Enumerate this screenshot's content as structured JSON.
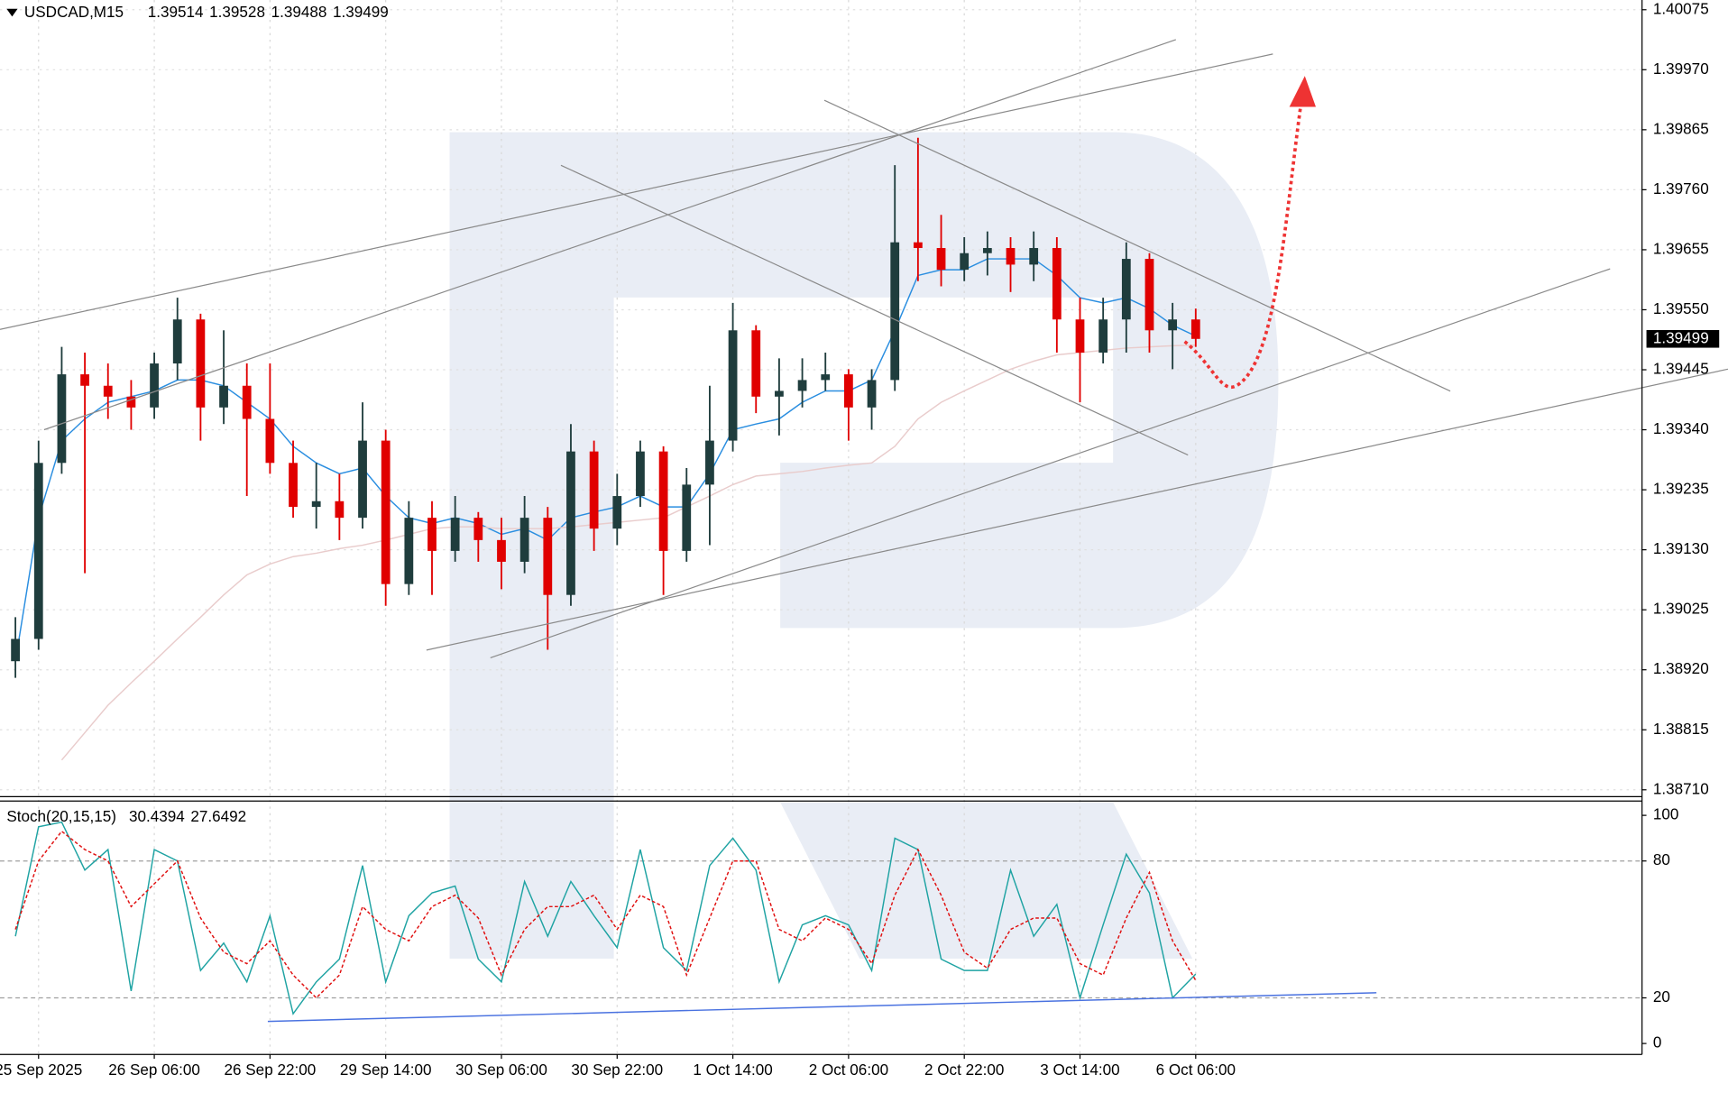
{
  "chart_data": [
    {
      "type": "candlestick",
      "title": "USDCAD,M15",
      "last_ohlc": {
        "open": 1.39514,
        "high": 1.39528,
        "low": 1.39488,
        "close": 1.39499
      },
      "price_label": 1.39499,
      "categories": [
        null,
        "25 Sep 2025",
        null,
        null,
        null,
        null,
        "26 Sep 06:00",
        null,
        null,
        null,
        null,
        "26 Sep 22:00",
        null,
        null,
        null,
        null,
        "29 Sep 14:00",
        null,
        null,
        null,
        null,
        "30 Sep 06:00",
        null,
        null,
        null,
        null,
        "30 Sep 22:00",
        null,
        null,
        null,
        null,
        "1 Oct 14:00",
        null,
        null,
        null,
        null,
        "2 Oct 06:00",
        null,
        null,
        null,
        null,
        "2 Oct 22:00",
        null,
        null,
        null,
        null,
        "3 Oct 14:00",
        null,
        null,
        null,
        null,
        "6 Oct 06:00"
      ],
      "open": [
        1.38935,
        1.38974,
        1.39282,
        1.39437,
        1.39417,
        1.39398,
        1.39379,
        1.39456,
        1.39533,
        1.39379,
        1.39417,
        1.39359,
        1.39282,
        1.39205,
        1.39215,
        1.39186,
        1.39321,
        1.3907,
        1.39186,
        1.39128,
        1.39186,
        1.39147,
        1.39109,
        1.39186,
        1.39051,
        1.39302,
        1.39167,
        1.39224,
        1.39302,
        1.39128,
        1.39244,
        1.39321,
        1.39514,
        1.39398,
        1.39408,
        1.39427,
        1.39437,
        1.39379,
        1.39427,
        1.39668,
        1.39658,
        1.3962,
        1.39649,
        1.39658,
        1.39629,
        1.39658,
        1.39533,
        1.39475,
        1.39533,
        1.39639,
        1.39514,
        1.39533
      ],
      "high": [
        1.39012,
        1.39321,
        1.39485,
        1.39475,
        1.39456,
        1.39427,
        1.39475,
        1.39571,
        1.39543,
        1.39514,
        1.39456,
        1.39456,
        1.39321,
        1.39282,
        1.39263,
        1.39388,
        1.3934,
        1.39215,
        1.39215,
        1.39224,
        1.39196,
        1.39186,
        1.39224,
        1.39205,
        1.3935,
        1.39321,
        1.39263,
        1.39321,
        1.39311,
        1.39273,
        1.39417,
        1.39562,
        1.39523,
        1.39465,
        1.39465,
        1.39475,
        1.39446,
        1.39446,
        1.39803,
        1.39851,
        1.39716,
        1.39677,
        1.39687,
        1.39677,
        1.39687,
        1.39677,
        1.39571,
        1.39571,
        1.39668,
        1.39649,
        1.39562,
        1.39552
      ],
      "low": [
        1.38906,
        1.38955,
        1.39263,
        1.39089,
        1.39359,
        1.3934,
        1.39359,
        1.39427,
        1.39321,
        1.3935,
        1.39224,
        1.39263,
        1.39186,
        1.39167,
        1.39147,
        1.39167,
        1.39032,
        1.39051,
        1.39051,
        1.39109,
        1.39109,
        1.39061,
        1.39089,
        1.38955,
        1.39032,
        1.39128,
        1.39138,
        1.39205,
        1.39051,
        1.39109,
        1.39138,
        1.39302,
        1.39369,
        1.3933,
        1.39379,
        1.39408,
        1.39321,
        1.3934,
        1.39408,
        1.396,
        1.39591,
        1.396,
        1.3961,
        1.39581,
        1.396,
        1.39475,
        1.39388,
        1.39456,
        1.39475,
        1.39475,
        1.39446,
        1.39485
      ],
      "close": [
        1.38974,
        1.39282,
        1.39437,
        1.39417,
        1.39398,
        1.39379,
        1.39456,
        1.39533,
        1.39379,
        1.39417,
        1.39359,
        1.39282,
        1.39205,
        1.39215,
        1.39186,
        1.39321,
        1.3907,
        1.39186,
        1.39128,
        1.39186,
        1.39147,
        1.39109,
        1.39186,
        1.39051,
        1.39302,
        1.39167,
        1.39224,
        1.39302,
        1.39128,
        1.39244,
        1.39321,
        1.39514,
        1.39398,
        1.39408,
        1.39427,
        1.39437,
        1.39379,
        1.39427,
        1.39668,
        1.39658,
        1.3962,
        1.39649,
        1.39658,
        1.39629,
        1.39658,
        1.39533,
        1.39475,
        1.39533,
        1.39639,
        1.39514,
        1.39533,
        1.39499
      ],
      "up_color": "#1f3d3d",
      "down_color": "#e00000",
      "series": [
        {
          "color": "#2a8ee0",
          "values": [
            1.38935,
            1.39186,
            1.39321,
            1.39359,
            1.39388,
            1.39398,
            1.39408,
            1.39427,
            1.39427,
            1.39417,
            1.39388,
            1.39359,
            1.39311,
            1.39282,
            1.39263,
            1.39273,
            1.39224,
            1.39186,
            1.39176,
            1.39186,
            1.39176,
            1.39157,
            1.39167,
            1.39147,
            1.39186,
            1.39196,
            1.39205,
            1.39224,
            1.39205,
            1.39205,
            1.39263,
            1.3934,
            1.3935,
            1.39359,
            1.39388,
            1.39408,
            1.39408,
            1.39427,
            1.39514,
            1.3961,
            1.3962,
            1.3962,
            1.39639,
            1.39639,
            1.39639,
            1.3961,
            1.39571,
            1.39562,
            1.39571,
            1.39552,
            1.39523,
            1.39504
          ]
        },
        {
          "color": "#e9cccc",
          "values": [
            null,
            null,
            1.38762,
            1.3881,
            1.38858,
            1.38897,
            1.38935,
            1.38974,
            1.39012,
            1.39051,
            1.39086,
            1.39105,
            1.39118,
            1.39124,
            1.39132,
            1.39138,
            1.39147,
            1.39157,
            1.39167,
            1.3917,
            1.3917,
            1.39167,
            1.39167,
            1.39167,
            1.3917,
            1.39174,
            1.39178,
            1.39182,
            1.39186,
            1.39205,
            1.39224,
            1.39244,
            1.39259,
            1.39263,
            1.39267,
            1.39273,
            1.39278,
            1.39282,
            1.39311,
            1.39359,
            1.39388,
            1.39408,
            1.39427,
            1.39446,
            1.3946,
            1.39471,
            1.39475,
            1.39479,
            1.39483,
            1.39485,
            1.39487,
            1.39488
          ]
        }
      ],
      "ylim": [
        1.387,
        1.40092
      ],
      "yticks": [
        {
          "value": 1.40075,
          "label": "1.40075"
        },
        {
          "value": 1.3997,
          "label": "1.39970"
        },
        {
          "value": 1.39865,
          "label": "1.39865"
        },
        {
          "value": 1.3976,
          "label": "1.39760"
        },
        {
          "value": 1.39655,
          "label": "1.39655"
        },
        {
          "value": 1.3955,
          "label": "1.39550"
        },
        {
          "value": 1.39445,
          "label": "1.39445"
        },
        {
          "value": 1.3934,
          "label": "1.39340"
        },
        {
          "value": 1.39235,
          "label": "1.39235"
        },
        {
          "value": 1.3913,
          "label": "1.39130"
        },
        {
          "value": 1.39025,
          "label": "1.39025"
        },
        {
          "value": 1.3892,
          "label": "1.38920"
        },
        {
          "value": 1.38815,
          "label": "1.38815"
        },
        {
          "value": 1.3871,
          "label": "1.38710"
        }
      ],
      "grid": true
    },
    {
      "type": "line",
      "title": "Stoch(20,15,15)",
      "readings": [
        30.4394,
        27.6492
      ],
      "series": [
        {
          "color": "#1fa3a3",
          "values": [
            47,
            95,
            97,
            76,
            85,
            23,
            85,
            80,
            32,
            44,
            27,
            56,
            13,
            27,
            37,
            78,
            27,
            56,
            66,
            69,
            37,
            27,
            71,
            47,
            71,
            56,
            42,
            85,
            42,
            32,
            78,
            90,
            76,
            27,
            52,
            56,
            52,
            32,
            90,
            85,
            37,
            32,
            32,
            76,
            47,
            61,
            20,
            52,
            83,
            66,
            20,
            30.4394
          ]
        },
        {
          "color": "#e01010",
          "values": [
            50,
            80,
            93,
            85,
            80,
            60,
            70,
            80,
            55,
            40,
            35,
            45,
            30,
            20,
            30,
            60,
            50,
            45,
            60,
            65,
            55,
            30,
            50,
            60,
            60,
            65,
            50,
            65,
            60,
            30,
            55,
            80,
            80,
            50,
            45,
            55,
            50,
            35,
            65,
            85,
            65,
            40,
            33,
            50,
            55,
            55,
            35,
            30,
            55,
            75,
            45,
            27.6492
          ]
        }
      ],
      "ylim": [
        -4.8,
        105.8
      ],
      "yticks": [
        0,
        20,
        80,
        100
      ],
      "levels": [
        20,
        80
      ]
    }
  ]
}
